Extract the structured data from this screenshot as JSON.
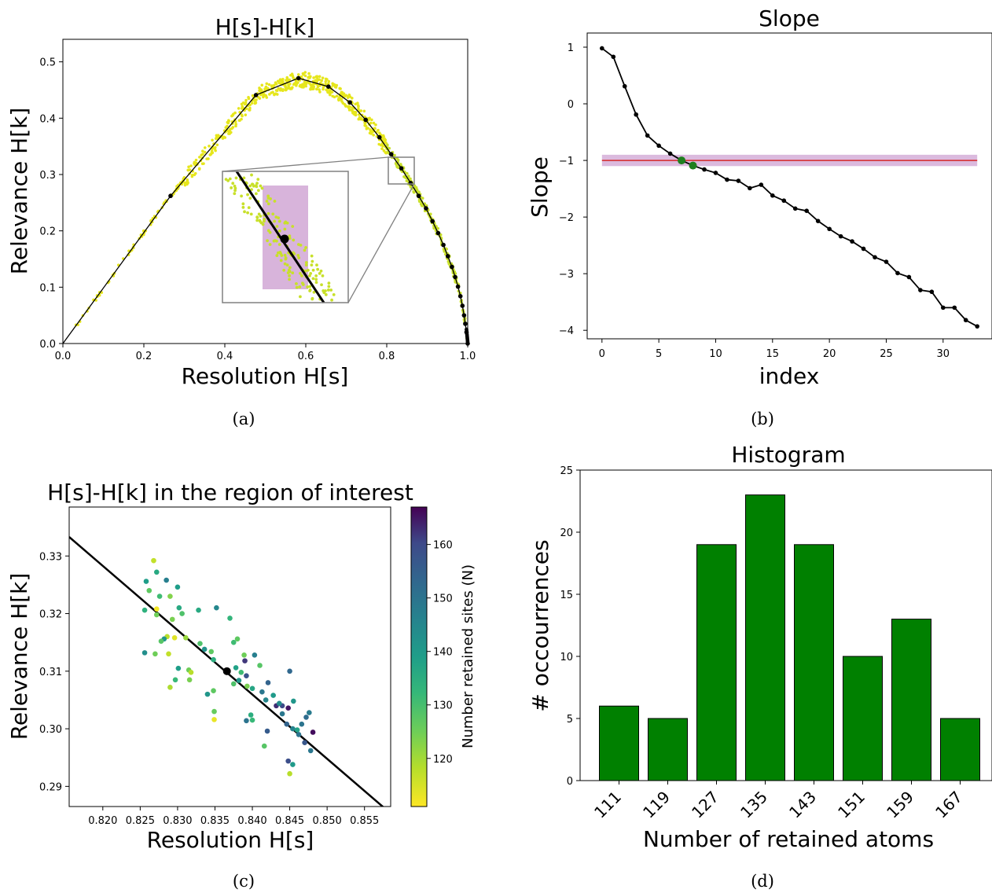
{
  "captions": [
    "(a)",
    "(b)",
    "(c)",
    "(d)"
  ],
  "colors": {
    "curve": "#000000",
    "scatter_yellow": "#e6e61c",
    "highlight": "#c38cc8",
    "threshold_line": "#d62728",
    "threshold_band": "#c38cc8",
    "slope_markers": "#1f7f1f",
    "bar_fill": "#008000",
    "bar_edge": "#000000"
  },
  "chart_data": [
    {
      "id": "a",
      "type": "scatter",
      "title": "H[s]-H[k]",
      "xlabel": "Resolution H[s]",
      "ylabel": "Relevance H[k]",
      "xlim": [
        0.0,
        1.0
      ],
      "ylim": [
        0.0,
        0.54
      ],
      "xticks": [
        "0.0",
        "0.2",
        "0.4",
        "0.6",
        "0.8",
        "1.0"
      ],
      "yticks": [
        "0.0",
        "0.1",
        "0.2",
        "0.3",
        "0.4",
        "0.5"
      ],
      "grid": false,
      "series": [
        {
          "kind": "line-with-markers",
          "x": [
            0.0,
            0.266,
            0.477,
            0.582,
            0.656,
            0.709,
            0.748,
            0.782,
            0.811,
            0.836,
            0.859,
            0.879,
            0.897,
            0.913,
            0.927,
            0.94,
            0.951,
            0.961,
            0.969,
            0.976,
            0.982,
            0.987,
            0.991,
            0.994,
            0.997,
            1.0
          ],
          "y": [
            0.0,
            0.262,
            0.441,
            0.471,
            0.456,
            0.428,
            0.397,
            0.366,
            0.336,
            0.311,
            0.285,
            0.262,
            0.24,
            0.217,
            0.196,
            0.175,
            0.155,
            0.136,
            0.118,
            0.101,
            0.084,
            0.067,
            0.05,
            0.035,
            0.02,
            0.0
          ]
        }
      ],
      "inset": {
        "region_x": [
          0.8,
          0.87
        ],
        "region_y": [
          0.285,
          0.333
        ],
        "highlight_point": [
          0.8366,
          0.31
        ]
      }
    },
    {
      "id": "b",
      "type": "line",
      "title": "Slope",
      "xlabel": "index",
      "ylabel": "Slope",
      "xlim": [
        -1.3,
        34.3
      ],
      "ylim": [
        -4.15,
        1.25
      ],
      "xticks": [
        "0",
        "5",
        "10",
        "15",
        "20",
        "25",
        "30"
      ],
      "yticks": [
        "1",
        "0",
        "−1",
        "−2",
        "−3",
        "−4"
      ],
      "grid": false,
      "x": [
        0,
        1,
        2,
        3,
        4,
        5,
        6,
        7,
        8,
        9,
        10,
        11,
        12,
        13,
        14,
        15,
        16,
        17,
        18,
        19,
        20,
        21,
        22,
        23,
        24,
        25,
        26,
        27,
        28,
        29,
        30,
        31,
        32,
        33
      ],
      "values": [
        0.98,
        0.83,
        0.31,
        -0.19,
        -0.56,
        -0.74,
        -0.88,
        -1.0,
        -1.09,
        -1.16,
        -1.22,
        -1.34,
        -1.36,
        -1.49,
        -1.43,
        -1.62,
        -1.71,
        -1.85,
        -1.89,
        -2.07,
        -2.21,
        -2.34,
        -2.43,
        -2.56,
        -2.71,
        -2.79,
        -2.99,
        -3.06,
        -3.29,
        -3.32,
        -3.6,
        -3.6,
        -3.82,
        -3.93
      ],
      "threshold": -1.0,
      "threshold_band": [
        -1.1,
        -0.9
      ],
      "highlighted_indices": [
        7,
        8
      ]
    },
    {
      "id": "c",
      "type": "scatter",
      "title": "H[s]-H[k] in the region of interest",
      "xlabel": "Resolution H[s]",
      "ylabel": "Relevance H[k]",
      "colorbar_label": "Number retained sites (N)",
      "colorbar_range": [
        111,
        167
      ],
      "colorbar_ticks": [
        "120",
        "130",
        "140",
        "150",
        "160"
      ],
      "xlim": [
        0.8155,
        0.8585
      ],
      "ylim": [
        0.2865,
        0.3385
      ],
      "xticks": [
        "0.820",
        "0.825",
        "0.830",
        "0.835",
        "0.840",
        "0.845",
        "0.850",
        "0.855"
      ],
      "yticks": [
        "0.29",
        "0.30",
        "0.31",
        "0.32",
        "0.33"
      ],
      "grid": false,
      "line": {
        "x": [
          0.8155,
          0.8585
        ],
        "y": [
          0.3333,
          0.2853
        ]
      },
      "highlight_point": [
        0.8366,
        0.31
      ],
      "points": [
        [
          0.8268,
          0.3292,
          117
        ],
        [
          0.8272,
          0.3272,
          136
        ],
        [
          0.8258,
          0.3256,
          139
        ],
        [
          0.8285,
          0.3258,
          147
        ],
        [
          0.83,
          0.3246,
          139
        ],
        [
          0.8262,
          0.324,
          127
        ],
        [
          0.8276,
          0.323,
          131
        ],
        [
          0.829,
          0.323,
          123
        ],
        [
          0.8293,
          0.319,
          124
        ],
        [
          0.8302,
          0.321,
          136
        ],
        [
          0.8272,
          0.3208,
          112
        ],
        [
          0.8256,
          0.3206,
          134
        ],
        [
          0.8306,
          0.32,
          129
        ],
        [
          0.8328,
          0.3206,
          136
        ],
        [
          0.8272,
          0.3198,
          125
        ],
        [
          0.8286,
          0.316,
          118
        ],
        [
          0.8282,
          0.3156,
          141
        ],
        [
          0.8296,
          0.3158,
          114
        ],
        [
          0.8311,
          0.3158,
          121
        ],
        [
          0.8278,
          0.3152,
          128
        ],
        [
          0.8256,
          0.3132,
          143
        ],
        [
          0.827,
          0.313,
          125
        ],
        [
          0.8288,
          0.313,
          117
        ],
        [
          0.8301,
          0.3105,
          139
        ],
        [
          0.8297,
          0.3085,
          132
        ],
        [
          0.829,
          0.3072,
          119
        ],
        [
          0.8315,
          0.3102,
          125
        ],
        [
          0.8318,
          0.3098,
          118
        ],
        [
          0.8316,
          0.3085,
          124
        ],
        [
          0.833,
          0.3148,
          129
        ],
        [
          0.8336,
          0.3138,
          142
        ],
        [
          0.8345,
          0.3134,
          127
        ],
        [
          0.8348,
          0.312,
          135
        ],
        [
          0.834,
          0.306,
          141
        ],
        [
          0.8348,
          0.3066,
          127
        ],
        [
          0.8349,
          0.303,
          126
        ],
        [
          0.8349,
          0.3016,
          113
        ],
        [
          0.8352,
          0.321,
          145
        ],
        [
          0.837,
          0.3192,
          133
        ],
        [
          0.838,
          0.3156,
          127
        ],
        [
          0.8375,
          0.315,
          131
        ],
        [
          0.8389,
          0.3128,
          125
        ],
        [
          0.839,
          0.3118,
          162
        ],
        [
          0.8378,
          0.3106,
          138
        ],
        [
          0.8385,
          0.3098,
          131
        ],
        [
          0.8382,
          0.3084,
          141
        ],
        [
          0.8375,
          0.3078,
          129
        ],
        [
          0.8393,
          0.3074,
          124
        ],
        [
          0.8392,
          0.3092,
          158
        ],
        [
          0.8403,
          0.3128,
          147
        ],
        [
          0.841,
          0.311,
          128
        ],
        [
          0.84,
          0.307,
          137
        ],
        [
          0.8413,
          0.3064,
          149
        ],
        [
          0.8421,
          0.308,
          154
        ],
        [
          0.8418,
          0.305,
          145
        ],
        [
          0.8392,
          0.3014,
          150
        ],
        [
          0.84,
          0.3015,
          132
        ],
        [
          0.8398,
          0.3024,
          135
        ],
        [
          0.842,
          0.2996,
          156
        ],
        [
          0.8416,
          0.297,
          128
        ],
        [
          0.8428,
          0.3058,
          140
        ],
        [
          0.8432,
          0.304,
          163
        ],
        [
          0.844,
          0.3026,
          149
        ],
        [
          0.844,
          0.304,
          160
        ],
        [
          0.8448,
          0.3036,
          165
        ],
        [
          0.8446,
          0.3008,
          154
        ],
        [
          0.845,
          0.31,
          153
        ],
        [
          0.8454,
          0.3,
          146
        ],
        [
          0.8455,
          0.3048,
          141
        ],
        [
          0.846,
          0.2998,
          138
        ],
        [
          0.8462,
          0.299,
          150
        ],
        [
          0.8466,
          0.3008,
          150
        ],
        [
          0.8472,
          0.302,
          152
        ],
        [
          0.8476,
          0.3028,
          148
        ],
        [
          0.847,
          0.2976,
          157
        ],
        [
          0.8478,
          0.2962,
          149
        ],
        [
          0.8481,
          0.2994,
          166
        ],
        [
          0.8448,
          0.2944,
          159
        ],
        [
          0.8454,
          0.2938,
          140
        ],
        [
          0.845,
          0.2922,
          118
        ],
        [
          0.8436,
          0.3044,
          144
        ]
      ]
    },
    {
      "id": "d",
      "type": "bar",
      "title": "Histogram",
      "xlabel": "Number of retained atoms",
      "ylabel": "# occourrences",
      "categories": [
        "111",
        "119",
        "127",
        "135",
        "143",
        "151",
        "159",
        "167"
      ],
      "values": [
        6,
        5,
        19,
        23,
        19,
        10,
        13,
        5
      ],
      "ylim": [
        0,
        25
      ],
      "yticks": [
        "0",
        "5",
        "10",
        "15",
        "20",
        "25"
      ],
      "grid": false
    }
  ]
}
